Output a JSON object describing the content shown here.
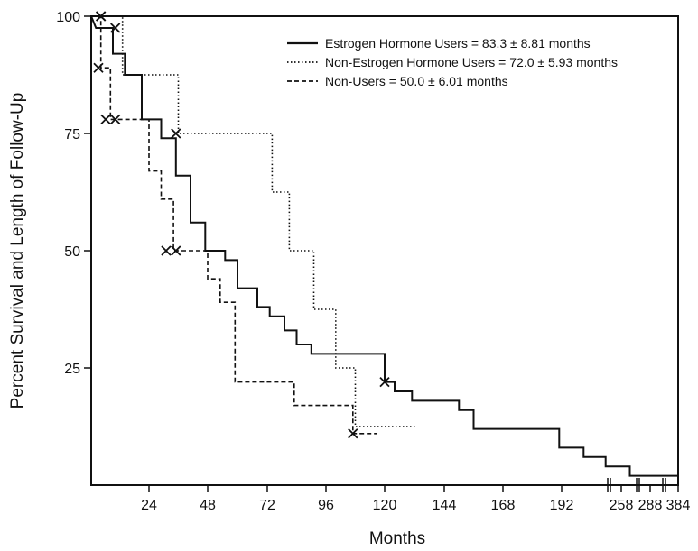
{
  "chart_data": {
    "type": "line",
    "title": "",
    "xlabel": "Months",
    "ylabel": "Percent Survival and Length of Follow-Up",
    "ylim": [
      0,
      100
    ],
    "x_tick_labels": [
      "24",
      "48",
      "72",
      "96",
      "120",
      "144",
      "168",
      "192",
      "258",
      "288",
      "384"
    ],
    "y_tick_labels": [
      "25",
      "50",
      "75",
      "100"
    ],
    "grid": false,
    "legend_position": "top-right",
    "series": [
      {
        "name": "Estrogen Hormone Users = 83.3 ± 8.81 months",
        "style": "solid",
        "color": "#111111",
        "points": [
          [
            0,
            100
          ],
          [
            2,
            97.5
          ],
          [
            9,
            97.5
          ],
          [
            9,
            92
          ],
          [
            14,
            92
          ],
          [
            14,
            87.5
          ],
          [
            21,
            87.5
          ],
          [
            21,
            78
          ],
          [
            29,
            78
          ],
          [
            29,
            74
          ],
          [
            35,
            74
          ],
          [
            35,
            66
          ],
          [
            41,
            66
          ],
          [
            41,
            56
          ],
          [
            47,
            56
          ],
          [
            47,
            50
          ],
          [
            55,
            50
          ],
          [
            55,
            48
          ],
          [
            60,
            48
          ],
          [
            60,
            42
          ],
          [
            68,
            42
          ],
          [
            68,
            38
          ],
          [
            73,
            38
          ],
          [
            73,
            36
          ],
          [
            79,
            36
          ],
          [
            79,
            33
          ],
          [
            84,
            33
          ],
          [
            84,
            30
          ],
          [
            90,
            30
          ],
          [
            90,
            28
          ],
          [
            120,
            28
          ],
          [
            120,
            22
          ],
          [
            124,
            22
          ],
          [
            124,
            20
          ],
          [
            131,
            20
          ],
          [
            131,
            18
          ],
          [
            150,
            18
          ],
          [
            150,
            16
          ],
          [
            156,
            16
          ],
          [
            156,
            12
          ],
          [
            191,
            12
          ],
          [
            191,
            8
          ],
          [
            202,
            8
          ],
          [
            202,
            6
          ],
          [
            212,
            6
          ],
          [
            212,
            4
          ],
          [
            223,
            4
          ],
          [
            223,
            2
          ],
          [
            245,
            2
          ]
        ],
        "censor_marks": [
          [
            4,
            100
          ],
          [
            10,
            97.5
          ],
          [
            35,
            75
          ],
          [
            120,
            22
          ]
        ]
      },
      {
        "name": "Non-Estrogen Hormone Users = 72.0 ± 5.93 months",
        "style": "dotted",
        "color": "#111111",
        "points": [
          [
            0,
            100
          ],
          [
            3,
            100
          ],
          [
            6,
            100
          ],
          [
            6,
            100
          ],
          [
            10,
            100
          ],
          [
            10,
            100
          ],
          [
            13,
            100
          ],
          [
            13,
            87.5
          ],
          [
            36,
            87.5
          ],
          [
            36,
            75
          ],
          [
            74,
            75
          ],
          [
            74,
            62.5
          ],
          [
            81,
            62.5
          ],
          [
            81,
            50
          ],
          [
            91,
            50
          ],
          [
            91,
            37.5
          ],
          [
            100,
            37.5
          ],
          [
            100,
            25
          ],
          [
            108,
            25
          ],
          [
            108,
            12.5
          ],
          [
            133,
            12.5
          ]
        ],
        "censor_marks": []
      },
      {
        "name": "Non-Users = 50.0 ± 6.01 months",
        "style": "dashed",
        "color": "#111111",
        "points": [
          [
            0,
            100
          ],
          [
            4,
            100
          ],
          [
            4,
            89
          ],
          [
            8,
            89
          ],
          [
            8,
            78
          ],
          [
            24,
            78
          ],
          [
            24,
            67
          ],
          [
            29,
            67
          ],
          [
            29,
            61
          ],
          [
            34,
            61
          ],
          [
            34,
            50
          ],
          [
            48,
            50
          ],
          [
            48,
            44
          ],
          [
            53,
            44
          ],
          [
            53,
            39
          ],
          [
            59,
            39
          ],
          [
            59,
            22
          ],
          [
            83,
            22
          ],
          [
            83,
            17
          ],
          [
            107,
            17
          ],
          [
            107,
            11
          ],
          [
            117,
            11
          ]
        ],
        "censor_marks": [
          [
            4,
            100
          ],
          [
            3,
            89
          ],
          [
            6,
            78
          ],
          [
            10,
            78
          ],
          [
            31,
            50
          ],
          [
            35,
            50
          ],
          [
            107,
            11
          ]
        ]
      }
    ]
  }
}
